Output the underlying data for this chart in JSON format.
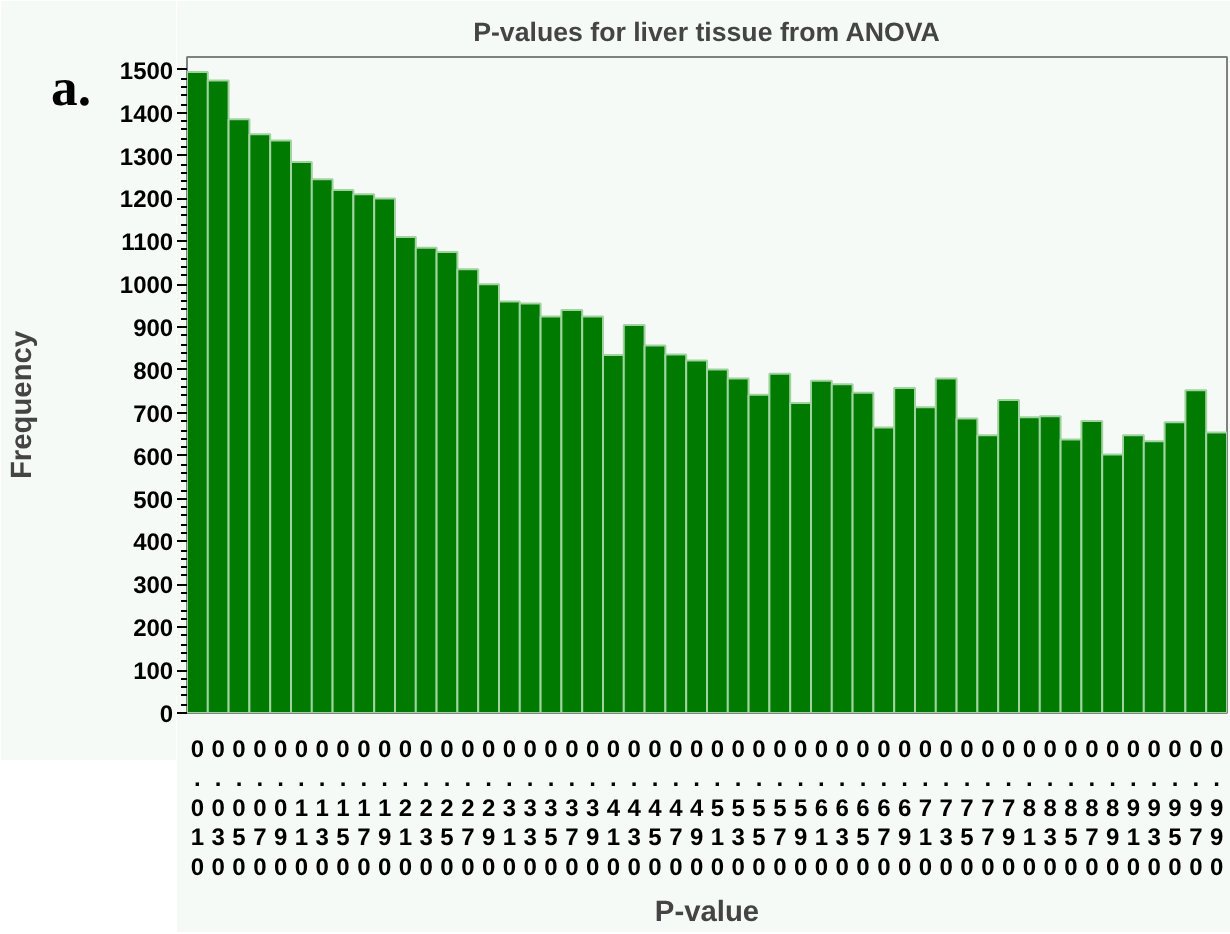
{
  "chart_data": {
    "type": "histogram",
    "title": "P-values for liver tissue from ANOVA",
    "xlabel": "P-value",
    "ylabel": "Frequency",
    "annotations": [
      "a."
    ],
    "bins": [
      0,
      0.02,
      0.04,
      0.06,
      0.08,
      0.1,
      0.12,
      0.14,
      0.16,
      0.18,
      0.2,
      0.22,
      0.24,
      0.26,
      0.28,
      0.3,
      0.32,
      0.34,
      0.36,
      0.38,
      0.4,
      0.42,
      0.44,
      0.46,
      0.48,
      0.5,
      0.52,
      0.54,
      0.56,
      0.58,
      0.6,
      0.62,
      0.64,
      0.66,
      0.68,
      0.7,
      0.72,
      0.74,
      0.76,
      0.78,
      0.8,
      0.82,
      0.84,
      0.86,
      0.88,
      0.9,
      0.92,
      0.94,
      0.96,
      0.98,
      1
    ],
    "values": [
      1495,
      1475,
      1385,
      1350,
      1335,
      1285,
      1245,
      1220,
      1210,
      1200,
      1110,
      1085,
      1075,
      1035,
      1000,
      960,
      955,
      925,
      940,
      925,
      835,
      905,
      857,
      836,
      822,
      801,
      780,
      742,
      791,
      723,
      775,
      767,
      747,
      666,
      758,
      713,
      780,
      687,
      648,
      730,
      690,
      692,
      638,
      681,
      603,
      648,
      634,
      678,
      753,
      654
    ],
    "color": "#007a00",
    "xlim": [
      0,
      1
    ],
    "ylim": [
      0,
      1530
    ],
    "yticks": [
      0,
      100,
      200,
      300,
      400,
      500,
      600,
      700,
      800,
      900,
      1000,
      1100,
      1200,
      1300,
      1400,
      1500
    ],
    "xticks": [
      {
        "value": 0.01,
        "label": "0.010"
      },
      {
        "value": 0.03,
        "label": "0.030"
      },
      {
        "value": 0.05,
        "label": "0.050"
      },
      {
        "value": 0.07,
        "label": "0.070"
      },
      {
        "value": 0.09,
        "label": "0.090"
      },
      {
        "value": 0.11,
        "label": "0.110"
      },
      {
        "value": 0.13,
        "label": "0.130"
      },
      {
        "value": 0.15,
        "label": "0.150"
      },
      {
        "value": 0.17,
        "label": "0.170"
      },
      {
        "value": 0.19,
        "label": "0.190"
      },
      {
        "value": 0.21,
        "label": "0.210"
      },
      {
        "value": 0.23,
        "label": "0.230"
      },
      {
        "value": 0.25,
        "label": "0.250"
      },
      {
        "value": 0.27,
        "label": "0.270"
      },
      {
        "value": 0.29,
        "label": "0.290"
      },
      {
        "value": 0.31,
        "label": "0.310"
      },
      {
        "value": 0.33,
        "label": "0.330"
      },
      {
        "value": 0.35,
        "label": "0.350"
      },
      {
        "value": 0.37,
        "label": "0.370"
      },
      {
        "value": 0.39,
        "label": "0.390"
      },
      {
        "value": 0.41,
        "label": "0.410"
      },
      {
        "value": 0.43,
        "label": "0.430"
      },
      {
        "value": 0.45,
        "label": "0.450"
      },
      {
        "value": 0.47,
        "label": "0.470"
      },
      {
        "value": 0.49,
        "label": "0.490"
      },
      {
        "value": 0.51,
        "label": "0.510"
      },
      {
        "value": 0.53,
        "label": "0.530"
      },
      {
        "value": 0.55,
        "label": "0.550"
      },
      {
        "value": 0.57,
        "label": "0.570"
      },
      {
        "value": 0.59,
        "label": "0.590"
      },
      {
        "value": 0.61,
        "label": "0.610"
      },
      {
        "value": 0.63,
        "label": "0.630"
      },
      {
        "value": 0.65,
        "label": "0.650"
      },
      {
        "value": 0.67,
        "label": "0.670"
      },
      {
        "value": 0.69,
        "label": "0.690"
      },
      {
        "value": 0.71,
        "label": "0.710"
      },
      {
        "value": 0.73,
        "label": "0.730"
      },
      {
        "value": 0.75,
        "label": "0.750"
      },
      {
        "value": 0.77,
        "label": "0.770"
      },
      {
        "value": 0.79,
        "label": "0.790"
      },
      {
        "value": 0.81,
        "label": "0.810"
      },
      {
        "value": 0.83,
        "label": "0.830"
      },
      {
        "value": 0.85,
        "label": "0.850"
      },
      {
        "value": 0.87,
        "label": "0.870"
      },
      {
        "value": 0.89,
        "label": "0.890"
      },
      {
        "value": 0.91,
        "label": "0.910"
      },
      {
        "value": 0.93,
        "label": "0.930"
      },
      {
        "value": 0.95,
        "label": "0.950"
      },
      {
        "value": 0.97,
        "label": "0.970"
      },
      {
        "value": 0.99,
        "label": "0.990"
      }
    ],
    "grid": false
  }
}
